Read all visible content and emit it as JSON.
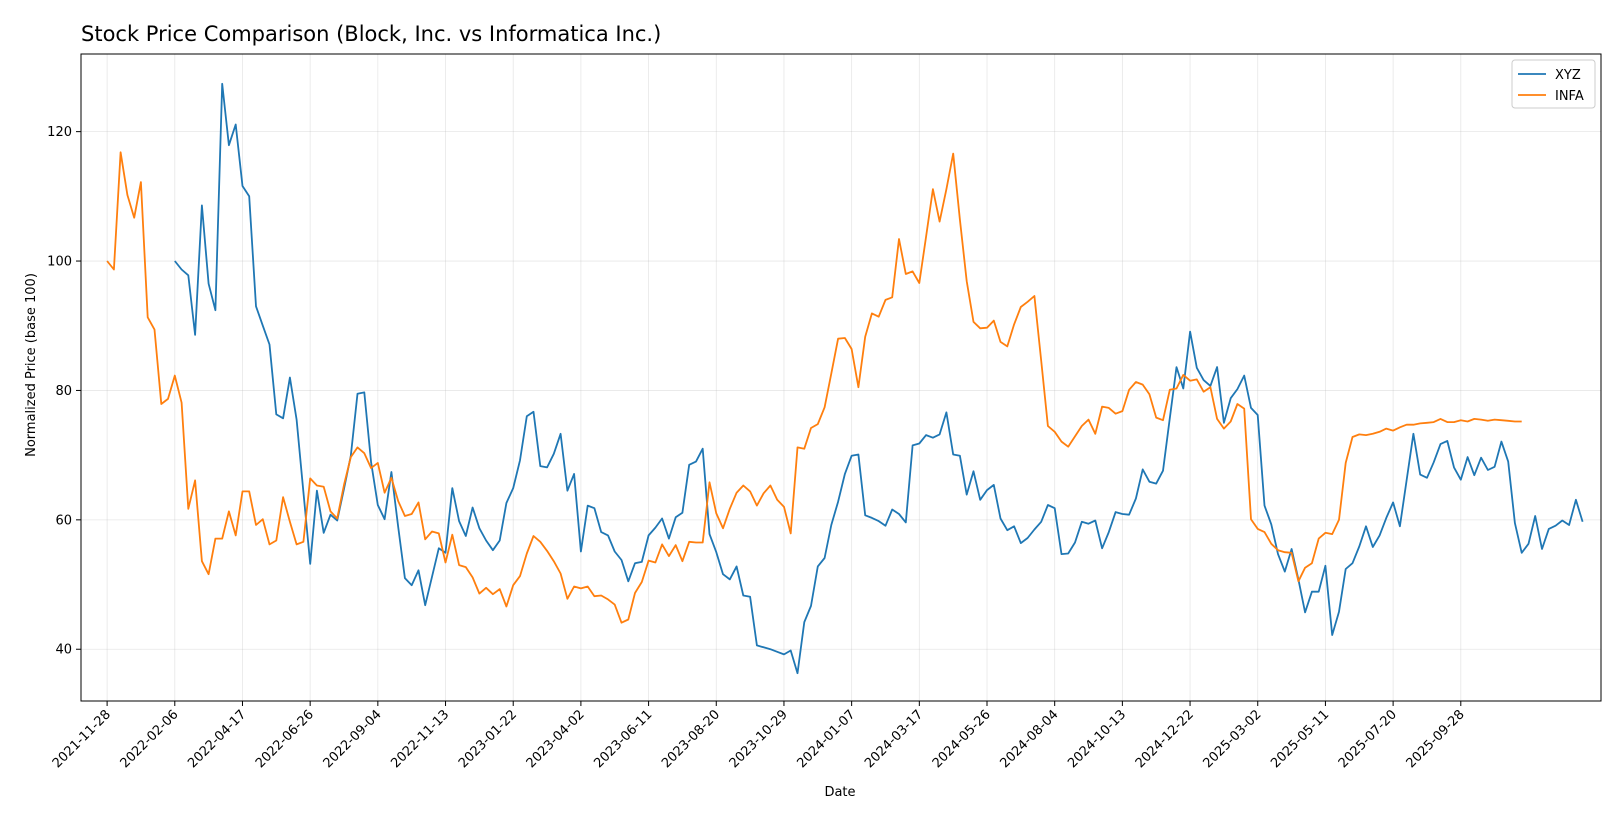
{
  "chart_data": {
    "type": "line",
    "title": "Stock Price Comparison (Block, Inc. vs Informatica Inc.)",
    "xlabel": "Date",
    "ylabel": "Normalized Price (base 100)",
    "x_ticks": [
      "2021-11-28",
      "2022-02-06",
      "2022-04-17",
      "2022-06-26",
      "2022-09-04",
      "2022-11-13",
      "2023-01-22",
      "2023-04-02",
      "2023-06-11",
      "2023-08-20",
      "2023-10-29",
      "2024-01-07",
      "2024-03-17",
      "2024-05-26",
      "2024-08-04",
      "2024-10-13",
      "2024-12-22",
      "2025-03-02",
      "2025-05-11",
      "2025-07-20",
      "2025-09-28"
    ],
    "y_ticks": [
      40,
      60,
      80,
      100,
      120
    ],
    "ylim": [
      32,
      132
    ],
    "x_range": [
      "2021-11-01",
      "2026-02-20"
    ],
    "grid": true,
    "legend_position": "top-right",
    "series": [
      {
        "name": "XYZ",
        "color": "#1f77b4",
        "start": "2022-02-06",
        "step_days": 7,
        "values": [
          100,
          98.7,
          97.8,
          88.6,
          108.6,
          96.5,
          92.4,
          127.4,
          117.9,
          121.1,
          111.6,
          110,
          93,
          90,
          87.1,
          76.3,
          75.7,
          82,
          75.5,
          64.3,
          53.2,
          64.5,
          58,
          60.8,
          59.9,
          64.8,
          69.9,
          79.5,
          79.7,
          68.9,
          62.3,
          60.1,
          67.4,
          58.9,
          51,
          49.9,
          52.2,
          46.8,
          51.2,
          55.6,
          54.9,
          64.9,
          59.8,
          57.5,
          61.9,
          58.7,
          56.8,
          55.3,
          56.8,
          62.6,
          64.9,
          69.2,
          76,
          76.7,
          68.3,
          68.1,
          70.2,
          73.3,
          64.5,
          67.1,
          55.1,
          62.2,
          61.8,
          58.1,
          57.6,
          55.1,
          53.8,
          50.5,
          53.3,
          53.5,
          57.6,
          58.8,
          60.2,
          57.1,
          60.4,
          61.1,
          68.5,
          69,
          71,
          57.8,
          55,
          51.6,
          50.8,
          52.8,
          48.3,
          48.1,
          40.6,
          40.3,
          40,
          39.6,
          39.2,
          39.8,
          36.3,
          44.2,
          46.7,
          52.8,
          54.1,
          59.2,
          62.8,
          67.1,
          69.9,
          70.1,
          60.7,
          60.3,
          59.8,
          59.1,
          61.6,
          60.9,
          59.6,
          71.5,
          71.8,
          73.1,
          72.7,
          73.2,
          76.6,
          70.1,
          69.9,
          63.9,
          67.5,
          63.1,
          64.6,
          65.4,
          60.2,
          58.4,
          59,
          56.4,
          57.2,
          58.5,
          59.7,
          62.3,
          61.8,
          54.7,
          54.8,
          56.5,
          59.7,
          59.4,
          59.9,
          55.6,
          58.1,
          61.2,
          60.9,
          60.8,
          63.3,
          67.8,
          65.9,
          65.6,
          67.6,
          75.7,
          83.6,
          80.3,
          89.1,
          83.5,
          81.6,
          80.7,
          83.6,
          75,
          78.8,
          80.2,
          82.3,
          77.3,
          76.2,
          62.2,
          59.3,
          54.7,
          52,
          55.5,
          50.8,
          45.7,
          48.9,
          48.9,
          52.9,
          42.2,
          45.8,
          52.4,
          53.3,
          55.9,
          59,
          55.8,
          57.6,
          60.3,
          62.7,
          59,
          66.1,
          73.3,
          67,
          66.5,
          68.9,
          71.7,
          72.2,
          68.1,
          66.2,
          69.7,
          66.9,
          69.6,
          67.7,
          68.2,
          72.1,
          69,
          59.5,
          54.9,
          56.3,
          60.6,
          55.5,
          58.6,
          59.1,
          59.9,
          59.2,
          63.1,
          59.7
        ]
      },
      {
        "name": "INFA",
        "color": "#ff7f0e",
        "start": "2021-11-28",
        "step_days": 7,
        "values": [
          100,
          98.7,
          116.8,
          110.2,
          106.7,
          112.2,
          91.3,
          89.4,
          77.9,
          78.7,
          82.3,
          78.1,
          61.7,
          66.1,
          53.6,
          51.6,
          57.1,
          57.1,
          61.3,
          57.6,
          64.4,
          64.4,
          59.2,
          60.1,
          56.2,
          56.8,
          63.5,
          59.7,
          56.2,
          56.6,
          66.4,
          65.3,
          65.1,
          61.3,
          60.2,
          65.4,
          69.7,
          71.2,
          70.3,
          68,
          68.8,
          64.2,
          66.5,
          62.9,
          60.6,
          60.9,
          62.7,
          57,
          58.2,
          57.9,
          53.4,
          57.7,
          53,
          52.7,
          51.1,
          48.6,
          49.5,
          48.5,
          49.3,
          46.6,
          49.9,
          51.3,
          54.8,
          57.5,
          56.6,
          55.2,
          53.6,
          51.7,
          47.8,
          49.7,
          49.4,
          49.7,
          48.2,
          48.3,
          47.7,
          46.9,
          44.1,
          44.6,
          48.7,
          50.4,
          53.7,
          53.4,
          56.2,
          54.4,
          56.1,
          53.6,
          56.6,
          56.5,
          56.5,
          65.8,
          61,
          58.7,
          61.7,
          64.2,
          65.3,
          64.4,
          62.2,
          64.1,
          65.3,
          63.1,
          62,
          57.9,
          71.2,
          71,
          74.2,
          74.8,
          77.4,
          82.6,
          88,
          88.1,
          86.4,
          80.5,
          88.3,
          91.9,
          91.4,
          94,
          94.4,
          103.4,
          98,
          98.4,
          96.6,
          103.8,
          111.1,
          106.1,
          111.1,
          116.6,
          106.4,
          96.9,
          90.6,
          89.6,
          89.7,
          90.8,
          87.5,
          86.8,
          90.2,
          92.9,
          93.7,
          94.6,
          84.6,
          74.5,
          73.6,
          72.1,
          71.3,
          72.9,
          74.5,
          75.5,
          73.3,
          77.5,
          77.3,
          76.4,
          76.8,
          80.1,
          81.3,
          80.9,
          79.4,
          75.8,
          75.4,
          80.1,
          80.3,
          82.4,
          81.5,
          81.7,
          79.8,
          80.5,
          75.6,
          74.1,
          75.2,
          77.9,
          77.2,
          60.1,
          58.6,
          58.1,
          56.3,
          55.3,
          55,
          54.9,
          50.5,
          52.6,
          53.3,
          57.1,
          58,
          57.8,
          60,
          68.8,
          72.8,
          73.2,
          73.1,
          73.3,
          73.6,
          74.1,
          73.8,
          74.3,
          74.7,
          74.7,
          74.9,
          75,
          75.1,
          75.6,
          75.1,
          75.1,
          75.4,
          75.2,
          75.6,
          75.5,
          75.3,
          75.5,
          75.4,
          75.3,
          75.2,
          75.2
        ]
      }
    ]
  }
}
